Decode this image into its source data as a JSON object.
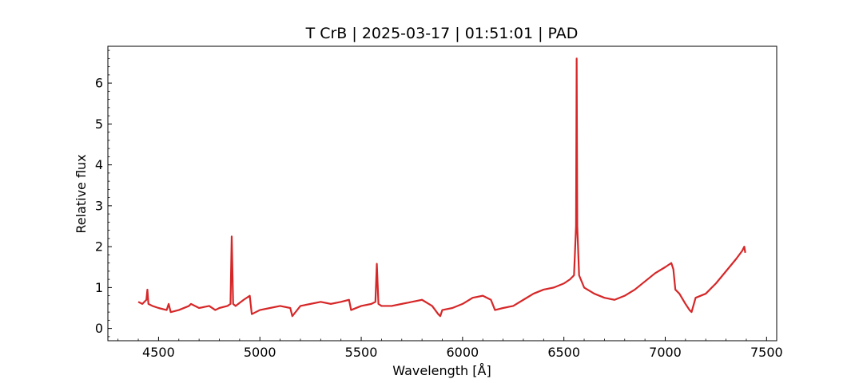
{
  "chart_data": {
    "type": "line",
    "title": "T CrB | 2025-03-17 | 01:51:01 | PAD",
    "xlabel": "Wavelength [Å]",
    "ylabel": "Relative flux",
    "xlim": [
      4250,
      7550
    ],
    "ylim": [
      -0.3,
      6.9
    ],
    "x_ticks": [
      4500,
      5000,
      5500,
      6000,
      6500,
      7000,
      7500
    ],
    "y_ticks": [
      0,
      1,
      2,
      3,
      4,
      5,
      6
    ],
    "x_minor_step": 100,
    "y_minor_step": 0.2,
    "grid": false,
    "line_color": "#d62728",
    "series": [
      {
        "x": [
          4400,
          4420,
          4440,
          4445,
          4450,
          4470,
          4500,
          4540,
          4550,
          4560,
          4600,
          4650,
          4660,
          4700,
          4750,
          4780,
          4800,
          4840,
          4855,
          4861,
          4868,
          4880,
          4920,
          4950,
          4960,
          5000,
          5050,
          5100,
          5150,
          5160,
          5200,
          5250,
          5300,
          5350,
          5400,
          5440,
          5450,
          5500,
          5550,
          5570,
          5577,
          5585,
          5600,
          5650,
          5700,
          5750,
          5800,
          5850,
          5880,
          5890,
          5900,
          5950,
          6000,
          6050,
          6100,
          6140,
          6160,
          6200,
          6250,
          6300,
          6350,
          6400,
          6450,
          6500,
          6530,
          6550,
          6560,
          6563,
          6566,
          6575,
          6600,
          6650,
          6700,
          6750,
          6800,
          6850,
          6900,
          6950,
          7000,
          7030,
          7040,
          7050,
          7070,
          7100,
          7120,
          7130,
          7150,
          7200,
          7250,
          7300,
          7350,
          7380,
          7390,
          7395
        ],
        "y": [
          0.65,
          0.6,
          0.7,
          0.95,
          0.6,
          0.55,
          0.5,
          0.45,
          0.6,
          0.4,
          0.45,
          0.55,
          0.6,
          0.5,
          0.55,
          0.45,
          0.5,
          0.55,
          0.6,
          2.25,
          0.6,
          0.55,
          0.7,
          0.8,
          0.35,
          0.45,
          0.5,
          0.55,
          0.5,
          0.3,
          0.55,
          0.6,
          0.65,
          0.6,
          0.65,
          0.7,
          0.45,
          0.55,
          0.6,
          0.65,
          1.58,
          0.6,
          0.55,
          0.55,
          0.6,
          0.65,
          0.7,
          0.55,
          0.35,
          0.3,
          0.45,
          0.5,
          0.6,
          0.75,
          0.8,
          0.7,
          0.45,
          0.5,
          0.55,
          0.7,
          0.85,
          0.95,
          1.0,
          1.1,
          1.2,
          1.3,
          2.5,
          6.6,
          2.5,
          1.3,
          1.0,
          0.85,
          0.75,
          0.7,
          0.8,
          0.95,
          1.15,
          1.35,
          1.5,
          1.6,
          1.45,
          0.95,
          0.85,
          0.6,
          0.45,
          0.4,
          0.75,
          0.85,
          1.1,
          1.4,
          1.7,
          1.9,
          2.0,
          1.85
        ]
      }
    ]
  }
}
